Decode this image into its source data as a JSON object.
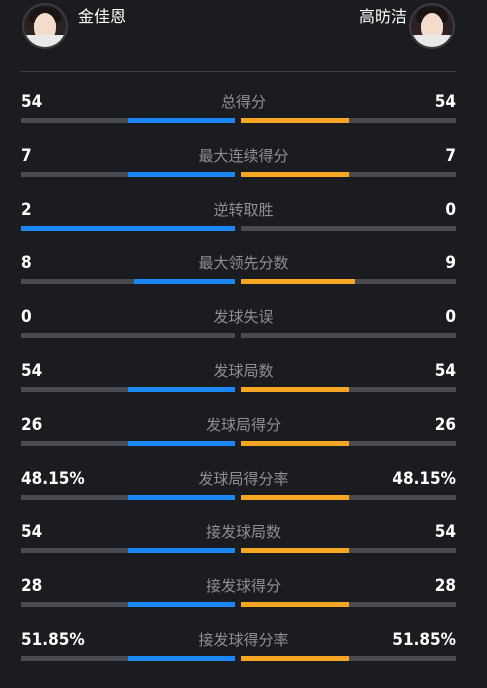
{
  "players": {
    "left": {
      "name": "金佳恩",
      "avatar_icon": "player-avatar"
    },
    "right": {
      "name": "高昉洁",
      "avatar_icon": "player-avatar"
    }
  },
  "colors": {
    "left_bar": "#1b87f5",
    "right_bar": "#f6a623",
    "track": "#4a4b50"
  },
  "stats": [
    {
      "label": "总得分",
      "left": "54",
      "right": "54",
      "left_fill": 0.5,
      "right_fill": 0.5
    },
    {
      "label": "最大连续得分",
      "left": "7",
      "right": "7",
      "left_fill": 0.5,
      "right_fill": 0.5
    },
    {
      "label": "逆转取胜",
      "left": "2",
      "right": "0",
      "left_fill": 1.0,
      "right_fill": 0.0
    },
    {
      "label": "最大领先分数",
      "left": "8",
      "right": "9",
      "left_fill": 0.47,
      "right_fill": 0.53
    },
    {
      "label": "发球失误",
      "left": "0",
      "right": "0",
      "left_fill": 0.0,
      "right_fill": 0.0
    },
    {
      "label": "发球局数",
      "left": "54",
      "right": "54",
      "left_fill": 0.5,
      "right_fill": 0.5
    },
    {
      "label": "发球局得分",
      "left": "26",
      "right": "26",
      "left_fill": 0.5,
      "right_fill": 0.5
    },
    {
      "label": "发球局得分率",
      "left": "48.15%",
      "right": "48.15%",
      "left_fill": 0.5,
      "right_fill": 0.5
    },
    {
      "label": "接发球局数",
      "left": "54",
      "right": "54",
      "left_fill": 0.5,
      "right_fill": 0.5
    },
    {
      "label": "接发球得分",
      "left": "28",
      "right": "28",
      "left_fill": 0.5,
      "right_fill": 0.5
    },
    {
      "label": "接发球得分率",
      "left": "51.85%",
      "right": "51.85%",
      "left_fill": 0.5,
      "right_fill": 0.5
    }
  ]
}
